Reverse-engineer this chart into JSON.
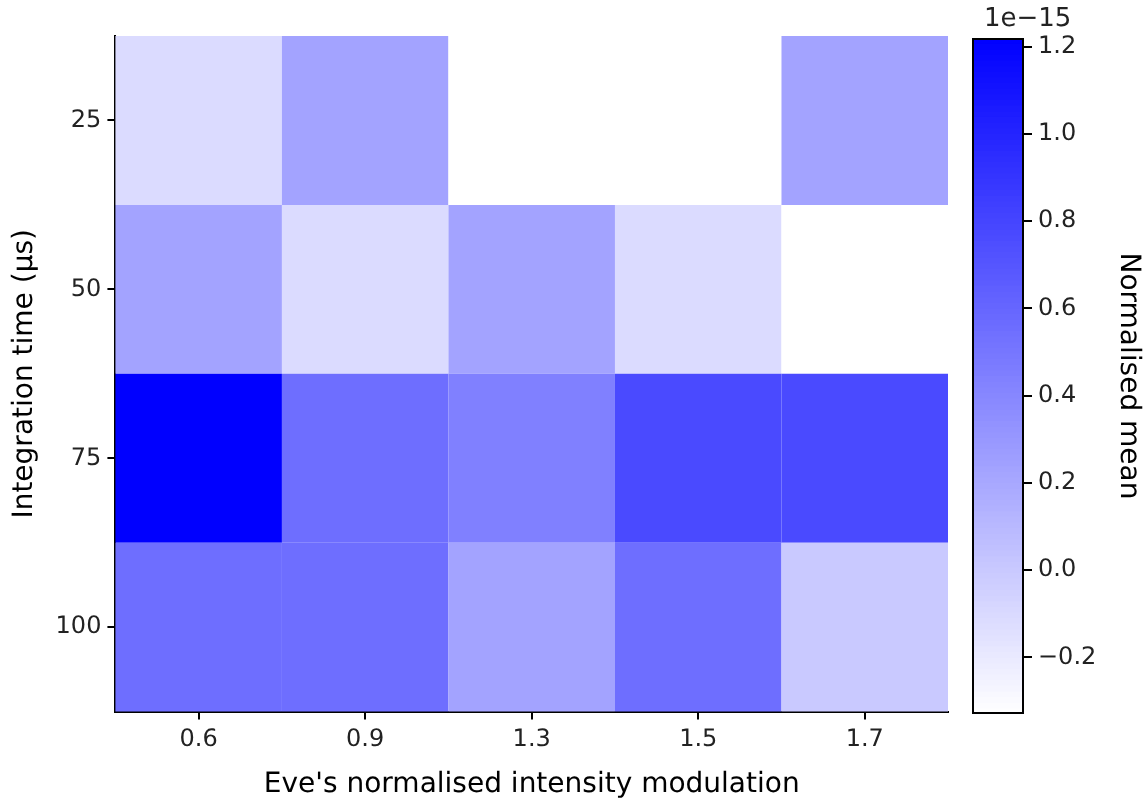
{
  "chart_data": {
    "type": "heatmap",
    "xlabel": "Eve's normalised intensity modulation",
    "ylabel": "Integration time (μs)",
    "clabel": "Normalised mean",
    "categories": [
      "0.6",
      "0.9",
      "1.3",
      "1.5",
      "1.7"
    ],
    "y_categories": [
      "25",
      "50",
      "75",
      "100"
    ],
    "cells": [
      [
        -0.11,
        0.23,
        -0.33,
        -0.33,
        0.23
      ],
      [
        0.23,
        -0.11,
        0.23,
        -0.11,
        -0.33
      ],
      [
        1.22,
        0.55,
        0.44,
        0.77,
        0.77
      ],
      [
        0.55,
        0.55,
        0.23,
        0.55,
        0.0
      ]
    ],
    "color": "#0000ff",
    "clim": [
      -0.33,
      1.22
    ],
    "cticks": [
      {
        "value": -0.2,
        "label": "−0.2"
      },
      {
        "value": 0,
        "label": "0.0"
      },
      {
        "value": 0.2,
        "label": "0.2"
      },
      {
        "value": 0.4,
        "label": "0.4"
      },
      {
        "value": 0.6,
        "label": "0.6"
      },
      {
        "value": 0.8,
        "label": "0.8"
      },
      {
        "value": 1.0,
        "label": "1.0"
      },
      {
        "value": 1.2,
        "label": "1.2"
      }
    ],
    "annotations": [
      "1e−15"
    ]
  }
}
